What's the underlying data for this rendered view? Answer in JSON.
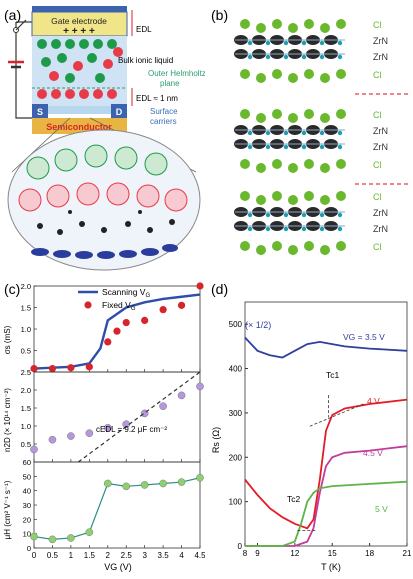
{
  "panel_a": {
    "label": "(a)",
    "gate": "Gate electrode",
    "gate_charges": "+ + + +",
    "edl_top": "EDL",
    "bulk": "Bulk ionic liquid",
    "ohp": "Outer Helmholtz",
    "ohp2": "plane",
    "edl_bottom": "EDL ≈ 1 nm",
    "carriers": "Surface",
    "carriers2": "carriers",
    "source": "S",
    "drain": "D",
    "semiconductor": "Semiconductor",
    "colors": {
      "gate": "#f1e58a",
      "semi": "#e9b542",
      "electrode": "#3c63b0",
      "cation": "#e83a49",
      "anion": "#1e9a4b",
      "ohp": "#2a9d6d",
      "carriers": "#3b6fb6"
    }
  },
  "panel_b": {
    "label": "(b)",
    "layers": [
      "Cl",
      "ZrN",
      "ZrN",
      "Cl",
      "Cl",
      "ZrN",
      "ZrN",
      "Cl",
      "Cl",
      "ZrN",
      "ZrN",
      "Cl"
    ],
    "colors": {
      "cl": "#6ab82e",
      "zrn": "#333333",
      "sep": "#e23a4a"
    }
  },
  "panel_c": {
    "label": "(c)",
    "legend_line": "Scanning V",
    "legend_line_sub": "G",
    "legend_dot": "Fixed V",
    "legend_dot_sub": "G",
    "ylabel_top": "σs (mS)",
    "ylabel_mid": "n2D (× 10¹⁴ cm⁻²)",
    "ylabel_bot": "μH (cm² V⁻¹ s⁻¹)",
    "xlabel": "VG (V)",
    "cedl": "cEDL = 9.2 μF cm⁻²",
    "colors": {
      "line": "#2f4ea8",
      "red": "#d6252b",
      "purple": "#b696dd",
      "green": "#8fce72",
      "sigma_line": "#2f4ea8",
      "mu_line": "#2b8f86"
    }
  },
  "panel_d": {
    "label": "(d)",
    "scale_note": "(× 1/2)",
    "curves": [
      {
        "label": "VG = 3.5 V",
        "color": "#2f3f9c"
      },
      {
        "label": "4 V",
        "color": "#e11d26"
      },
      {
        "label": "4.5 V",
        "color": "#c13c9b"
      },
      {
        "label": "5 V",
        "color": "#5cb446"
      }
    ],
    "tc1": "Tc1",
    "tc2": "Tc2",
    "ylabel": "Rs (Ω)",
    "xlabel": "T (K)"
  },
  "chart_data": [
    {
      "type": "line",
      "panel": "(c) top",
      "xlabel": "VG (V)",
      "ylabel": "σs (mS)",
      "xlim": [
        0,
        4.5
      ],
      "ylim": [
        0,
        2.0
      ],
      "xticks": [
        0,
        0.5,
        1,
        1.5,
        2,
        2.5,
        3,
        3.5,
        4,
        4.5
      ],
      "yticks": [
        0,
        0.5,
        1.0,
        1.5,
        2.0
      ],
      "series": [
        {
          "name": "Scanning VG",
          "style": "line",
          "x": [
            0,
            0.5,
            1.0,
            1.5,
            1.8,
            2.0,
            2.5,
            3.0,
            3.5,
            4.0,
            4.5
          ],
          "y": [
            0.08,
            0.1,
            0.12,
            0.2,
            0.55,
            1.2,
            1.5,
            1.62,
            1.7,
            1.75,
            1.8
          ]
        },
        {
          "name": "Fixed VG",
          "style": "markers",
          "x": [
            0,
            0.5,
            1.0,
            1.5,
            2.0,
            2.25,
            2.5,
            3.0,
            3.5,
            4.0,
            4.5
          ],
          "y": [
            0.08,
            0.08,
            0.1,
            0.12,
            0.7,
            0.95,
            1.15,
            1.2,
            1.45,
            1.55,
            2.0
          ]
        }
      ]
    },
    {
      "type": "scatter",
      "panel": "(c) middle",
      "xlabel": "VG (V)",
      "ylabel": "n2D (× 10¹⁴ cm⁻²)",
      "xlim": [
        0,
        4.5
      ],
      "ylim": [
        0,
        2.5
      ],
      "yticks": [
        0,
        0.5,
        1.0,
        1.5,
        2.0,
        2.5
      ],
      "annotation": "cEDL = 9.2 μF cm⁻²",
      "series": [
        {
          "name": "n2D",
          "style": "markers",
          "x": [
            0,
            0.5,
            1.0,
            1.5,
            2.0,
            2.5,
            3.0,
            3.5,
            4.0,
            4.5
          ],
          "y": [
            0.35,
            0.62,
            0.72,
            0.8,
            0.95,
            1.05,
            1.35,
            1.55,
            1.85,
            2.1
          ]
        },
        {
          "name": "fit",
          "style": "dashed",
          "x": [
            1.2,
            4.5
          ],
          "y": [
            0.0,
            2.55
          ]
        }
      ]
    },
    {
      "type": "line",
      "panel": "(c) bottom",
      "xlabel": "VG (V)",
      "ylabel": "μH (cm² V⁻¹ s⁻¹)",
      "xlim": [
        0,
        4.5
      ],
      "ylim": [
        0,
        60
      ],
      "yticks": [
        0,
        10,
        20,
        30,
        40,
        50,
        60
      ],
      "series": [
        {
          "name": "μH",
          "style": "line+markers",
          "x": [
            0,
            0.5,
            1.0,
            1.5,
            2.0,
            2.5,
            3.0,
            3.5,
            4.0,
            4.5
          ],
          "y": [
            8,
            6,
            7,
            11,
            45,
            43,
            44,
            45,
            46,
            49
          ]
        }
      ]
    },
    {
      "type": "line",
      "panel": "(d)",
      "xlabel": "T (K)",
      "ylabel": "Rs (Ω)",
      "xlim": [
        8,
        21
      ],
      "ylim": [
        0,
        550
      ],
      "xticks": [
        8,
        9,
        12,
        15,
        18,
        21
      ],
      "yticks": [
        0,
        100,
        200,
        300,
        400,
        500
      ],
      "series": [
        {
          "name": "VG = 3.5 V",
          "x": [
            8,
            9,
            10,
            11,
            12,
            13,
            14,
            15,
            16,
            18,
            21
          ],
          "y": [
            470,
            440,
            430,
            425,
            440,
            455,
            460,
            455,
            450,
            445,
            440
          ]
        },
        {
          "name": "4 V",
          "x": [
            8,
            9,
            10,
            11,
            12,
            13,
            13.5,
            14,
            14.5,
            15,
            16,
            18,
            21
          ],
          "y": [
            150,
            115,
            85,
            65,
            50,
            40,
            60,
            150,
            260,
            295,
            310,
            320,
            330
          ]
        },
        {
          "name": "4.5 V",
          "x": [
            8,
            12,
            13,
            13.5,
            14,
            14.5,
            15,
            16,
            18,
            21
          ],
          "y": [
            0,
            0,
            10,
            40,
            120,
            180,
            200,
            210,
            215,
            225
          ]
        },
        {
          "name": "5 V",
          "x": [
            8,
            11,
            12,
            12.5,
            13,
            13.5,
            14,
            15,
            18,
            21
          ],
          "y": [
            0,
            0,
            10,
            50,
            100,
            120,
            130,
            135,
            140,
            145
          ]
        }
      ]
    }
  ]
}
